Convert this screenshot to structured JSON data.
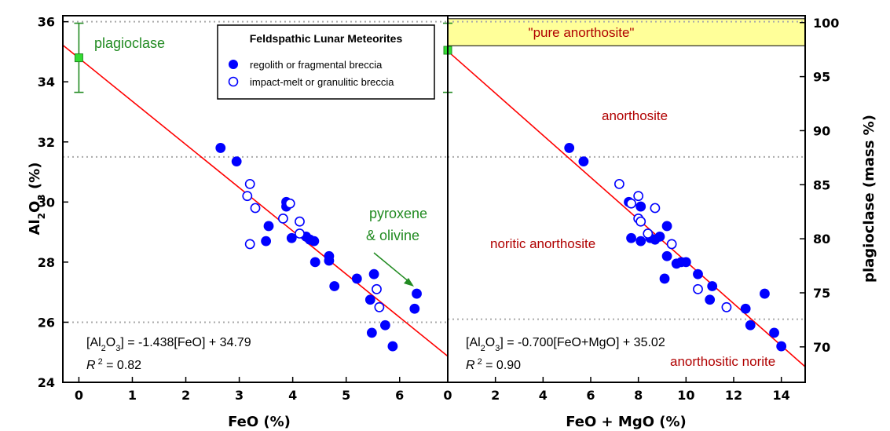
{
  "chart_data": [
    {
      "type": "scatter",
      "xlabel": "FeO (%)",
      "ylabel": "Al2O3 (%)",
      "xlim": [
        -0.3,
        6.9
      ],
      "ylim": [
        24,
        36.2
      ],
      "xticks": [
        0,
        1,
        2,
        3,
        4,
        5,
        6
      ],
      "yticks": [
        24,
        26,
        28,
        30,
        32,
        34,
        36
      ],
      "reference_lines_y": [
        26,
        31.5,
        36
      ],
      "fit": {
        "intercept": 34.79,
        "slope": -1.438
      },
      "equation_prefix": "[Al",
      "equation_sub1": "2",
      "equation_mid": "O",
      "equation_sub2": "3",
      "equation_suffix": "] = -1.438[FeO] + 34.79",
      "r2_label": "R",
      "r2_sup": "2",
      "r2_value": " = 0.82",
      "plagioclase_point": {
        "x": 0,
        "y": 34.8,
        "err_low": 33.65,
        "err_high": 35.95
      },
      "annotations": {
        "plagioclase": "plagioclase",
        "mafic_line1": "pyroxene",
        "mafic_line2": "& olivine"
      },
      "series": [
        {
          "name": "regolith or fragmental breccia",
          "marker": "filled",
          "points": [
            [
              2.65,
              31.8
            ],
            [
              2.95,
              31.35
            ],
            [
              3.55,
              29.2
            ],
            [
              3.5,
              28.7
            ],
            [
              3.88,
              30.0
            ],
            [
              3.88,
              29.85
            ],
            [
              3.98,
              28.8
            ],
            [
              4.25,
              28.85
            ],
            [
              4.32,
              28.75
            ],
            [
              4.4,
              28.7
            ],
            [
              4.42,
              28.0
            ],
            [
              4.68,
              28.2
            ],
            [
              4.68,
              28.05
            ],
            [
              4.78,
              27.2
            ],
            [
              5.2,
              27.45
            ],
            [
              5.45,
              26.75
            ],
            [
              5.48,
              25.65
            ],
            [
              5.52,
              27.6
            ],
            [
              5.73,
              25.9
            ],
            [
              5.87,
              25.2
            ],
            [
              6.28,
              26.45
            ],
            [
              6.32,
              26.95
            ]
          ]
        },
        {
          "name": "impact-melt or granulitic breccia",
          "marker": "open",
          "points": [
            [
              3.15,
              30.2
            ],
            [
              3.2,
              30.6
            ],
            [
              3.3,
              29.8
            ],
            [
              3.2,
              28.6
            ],
            [
              3.82,
              29.45
            ],
            [
              3.95,
              29.95
            ],
            [
              4.13,
              29.35
            ],
            [
              4.13,
              28.95
            ],
            [
              5.57,
              27.1
            ],
            [
              5.62,
              26.5
            ]
          ]
        }
      ]
    },
    {
      "type": "scatter",
      "xlabel": "FeO + MgO  (%)",
      "ylabel": "plagioclase  (mass %)",
      "xlim": [
        0,
        15
      ],
      "ylim": [
        24,
        36.2
      ],
      "xticks": [
        0,
        2,
        4,
        6,
        8,
        10,
        12,
        14
      ],
      "right_axis": {
        "ticks": [
          100,
          95,
          90,
          85,
          80,
          75,
          70
        ],
        "mass_pct_per_al2o3_pct": 2.78
      },
      "reference_lines_y": [
        26.1,
        31.5,
        36
      ],
      "fit": {
        "intercept": 35.02,
        "slope": -0.7
      },
      "equation_prefix": "[Al",
      "equation_sub1": "2",
      "equation_mid": "O",
      "equation_sub2": "3",
      "equation_suffix": "] = -0.700[FeO+MgO] + 35.02",
      "r2_label": "R",
      "r2_sup": "2",
      "r2_value": " = 0.90",
      "plagioclase_point": {
        "x": 0,
        "y": 35.05,
        "err_low": 33.65,
        "err_high": 35.95
      },
      "pure_band": {
        "label": "\"pure anorthosite\"",
        "y_low": 35.2,
        "y_high": 36.1,
        "color": "#ffff99"
      },
      "regions": {
        "anorthosite": "anorthosite",
        "noritic_anorthosite": "noritic anorthosite",
        "anorthositic_norite": "anorthositic norite"
      },
      "series": [
        {
          "name": "regolith or fragmental breccia",
          "marker": "filled",
          "points": [
            [
              5.1,
              31.8
            ],
            [
              5.7,
              31.35
            ],
            [
              7.6,
              30.0
            ],
            [
              7.7,
              28.8
            ],
            [
              8.1,
              28.7
            ],
            [
              8.1,
              29.85
            ],
            [
              8.5,
              28.8
            ],
            [
              8.7,
              28.75
            ],
            [
              8.9,
              28.85
            ],
            [
              9.2,
              29.2
            ],
            [
              9.2,
              28.2
            ],
            [
              9.1,
              27.45
            ],
            [
              9.6,
              27.95
            ],
            [
              9.8,
              28.0
            ],
            [
              10.0,
              28.0
            ],
            [
              10.5,
              27.6
            ],
            [
              11.0,
              26.75
            ],
            [
              11.1,
              27.2
            ],
            [
              12.5,
              26.45
            ],
            [
              12.7,
              25.9
            ],
            [
              13.3,
              26.95
            ],
            [
              13.7,
              25.65
            ],
            [
              14.0,
              25.2
            ]
          ]
        },
        {
          "name": "impact-melt or granulitic breccia",
          "marker": "open",
          "points": [
            [
              7.2,
              30.6
            ],
            [
              7.7,
              29.95
            ],
            [
              8.0,
              30.2
            ],
            [
              8.0,
              29.45
            ],
            [
              8.1,
              29.35
            ],
            [
              8.7,
              29.8
            ],
            [
              8.4,
              28.95
            ],
            [
              9.4,
              28.6
            ],
            [
              10.5,
              27.1
            ],
            [
              11.7,
              26.5
            ]
          ]
        }
      ]
    }
  ],
  "legend": {
    "title": "Feldspathic Lunar Meteorites",
    "items": [
      "regolith or fragmental breccia",
      "impact-melt or granulitic breccia"
    ]
  },
  "left_ylabel_parts": {
    "a": "Al",
    "b": "2",
    "c": "O",
    "d": "3",
    "e": " (%)"
  },
  "colors": {
    "marker": "#0000ff",
    "fit": "#ff0000",
    "green": "#228b22",
    "red_text": "#b00000",
    "band": "#ffff99"
  }
}
